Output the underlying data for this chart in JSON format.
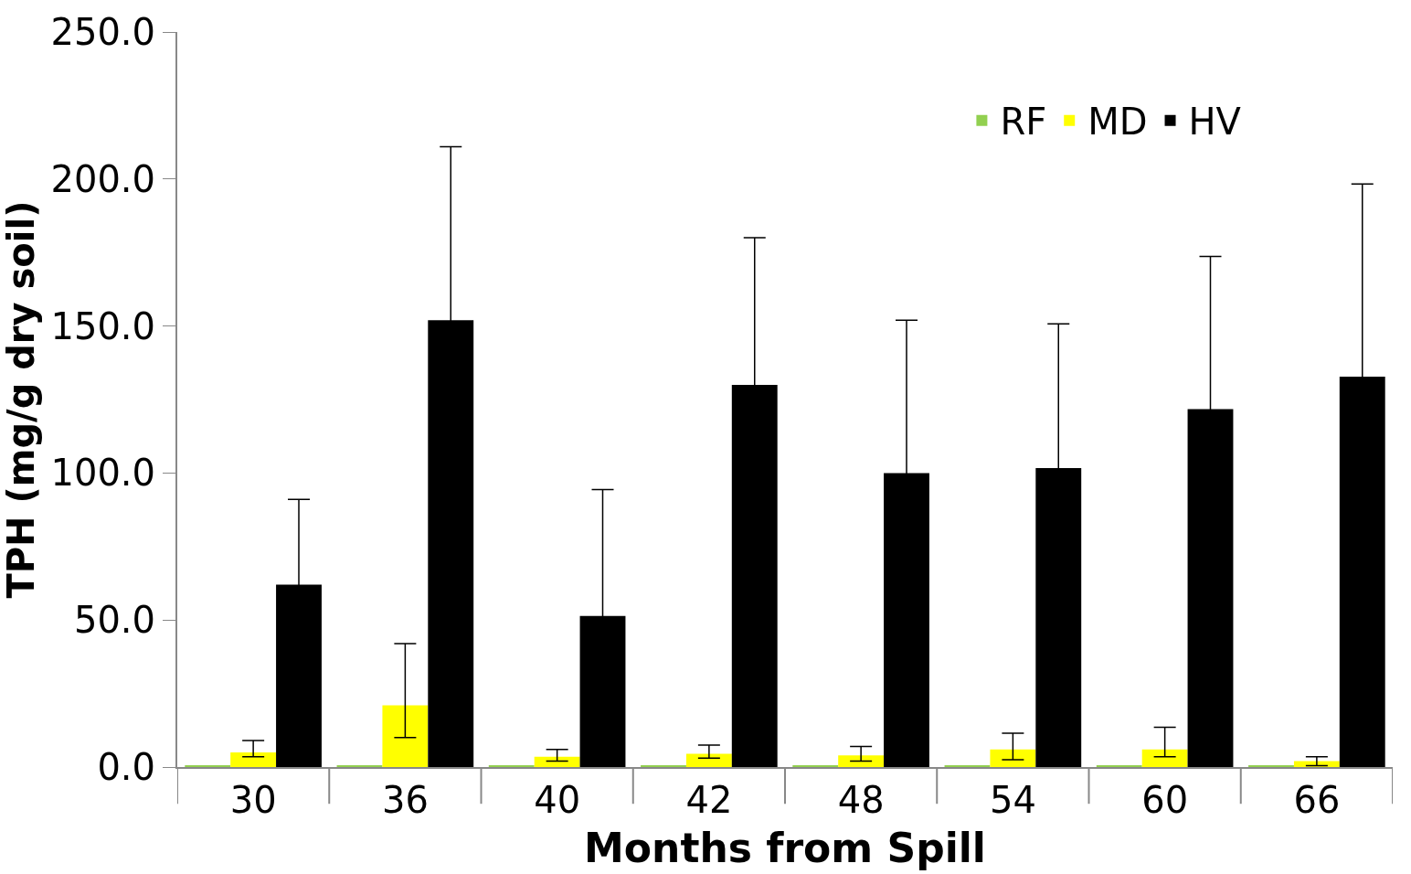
{
  "chart_data": {
    "type": "bar",
    "xlabel": "Months from Spill",
    "ylabel": "TPH (mg/g dry soil)",
    "categories": [
      "30",
      "36",
      "40",
      "42",
      "48",
      "54",
      "60",
      "66"
    ],
    "series": [
      {
        "name": "RF",
        "color": "#92d050",
        "values": [
          0.5,
          0.5,
          0.5,
          0.5,
          0.5,
          0.5,
          0.5,
          0.5
        ]
      },
      {
        "name": "MD",
        "color": "#ffff00",
        "values": [
          5,
          21,
          3.5,
          4.5,
          4,
          6,
          6,
          2
        ],
        "errors": [
          [
            3.5,
            9
          ],
          [
            10,
            42
          ],
          [
            2,
            6
          ],
          [
            3,
            7.5
          ],
          [
            2,
            7
          ],
          [
            2.5,
            11.5
          ],
          [
            3.5,
            13.5
          ],
          [
            0.5,
            3.5
          ]
        ]
      },
      {
        "name": "HV",
        "color": "#000000",
        "values": [
          62,
          152,
          51.4,
          130,
          100,
          101.7,
          121.7,
          132.8
        ],
        "errors": [
          29,
          59,
          43,
          50,
          52,
          49,
          52,
          65.5
        ]
      }
    ],
    "ylim": [
      0,
      250
    ],
    "yticks": [
      {
        "value": 0,
        "label": "0.0"
      },
      {
        "value": 50,
        "label": "50.0"
      },
      {
        "value": 100,
        "label": "100.0"
      },
      {
        "value": 150,
        "label": "150.0"
      },
      {
        "value": 200,
        "label": "200.0"
      },
      {
        "value": 250,
        "label": "250.0"
      }
    ],
    "legend": "top right"
  }
}
